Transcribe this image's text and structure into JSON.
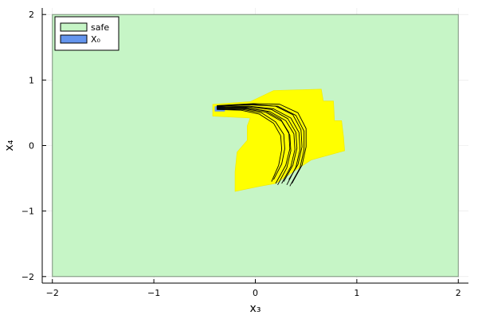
{
  "chart_data": {
    "type": "area",
    "xlabel": "x₃",
    "ylabel": "x₄",
    "xlim": [
      -2.1,
      2.1
    ],
    "ylim": [
      -2.1,
      2.1
    ],
    "xticks": [
      -2,
      -1,
      0,
      1,
      2
    ],
    "yticks": [
      -2,
      -1,
      0,
      1,
      2
    ],
    "xtick_labels": [
      "−2",
      "−1",
      "0",
      "1",
      "2"
    ],
    "ytick_labels": [
      "−2",
      "−1",
      "0",
      "1",
      "2"
    ],
    "grid": true,
    "legend_position": "top-left",
    "legend": [
      {
        "label": "safe",
        "color": "#c6f5c6"
      },
      {
        "label": "X₀",
        "color": "#6495ed"
      }
    ],
    "safe_set": {
      "x": [
        -2,
        2
      ],
      "y": [
        -2,
        2
      ],
      "fill": "#c6f5c6",
      "stroke": "#7a8f7a"
    },
    "initial_set": {
      "x": [
        -0.4,
        -0.3
      ],
      "y": [
        0.52,
        0.6
      ],
      "fill": "#6495ed"
    },
    "reach_set": {
      "fill": "#ffff00",
      "polygon": [
        [
          -0.42,
          0.63
        ],
        [
          -0.05,
          0.67
        ],
        [
          0.18,
          0.84
        ],
        [
          0.65,
          0.86
        ],
        [
          0.67,
          0.68
        ],
        [
          0.77,
          0.68
        ],
        [
          0.78,
          0.38
        ],
        [
          0.85,
          0.38
        ],
        [
          0.87,
          0.12
        ],
        [
          0.88,
          -0.08
        ],
        [
          0.55,
          -0.22
        ],
        [
          0.2,
          -0.58
        ],
        [
          0.05,
          -0.62
        ],
        [
          -0.2,
          -0.7
        ],
        [
          -0.2,
          -0.4
        ],
        [
          -0.18,
          -0.1
        ],
        [
          -0.08,
          0.08
        ],
        [
          -0.08,
          0.3
        ],
        [
          -0.05,
          0.42
        ],
        [
          -0.42,
          0.45
        ]
      ]
    },
    "trajectories": [
      [
        [
          -0.38,
          0.58
        ],
        [
          -0.1,
          0.58
        ],
        [
          0.1,
          0.53
        ],
        [
          0.25,
          0.4
        ],
        [
          0.33,
          0.2
        ],
        [
          0.34,
          -0.05
        ],
        [
          0.3,
          -0.3
        ],
        [
          0.2,
          -0.58
        ]
      ],
      [
        [
          -0.38,
          0.57
        ],
        [
          -0.08,
          0.57
        ],
        [
          0.14,
          0.52
        ],
        [
          0.3,
          0.38
        ],
        [
          0.38,
          0.18
        ],
        [
          0.39,
          -0.06
        ],
        [
          0.35,
          -0.32
        ],
        [
          0.26,
          -0.58
        ]
      ],
      [
        [
          -0.38,
          0.59
        ],
        [
          -0.06,
          0.6
        ],
        [
          0.18,
          0.56
        ],
        [
          0.35,
          0.42
        ],
        [
          0.43,
          0.2
        ],
        [
          0.44,
          -0.06
        ],
        [
          0.4,
          -0.33
        ],
        [
          0.31,
          -0.6
        ]
      ],
      [
        [
          -0.38,
          0.6
        ],
        [
          -0.04,
          0.62
        ],
        [
          0.22,
          0.6
        ],
        [
          0.4,
          0.46
        ],
        [
          0.48,
          0.22
        ],
        [
          0.48,
          -0.06
        ],
        [
          0.44,
          -0.34
        ],
        [
          0.34,
          -0.62
        ]
      ],
      [
        [
          -0.38,
          0.56
        ],
        [
          -0.12,
          0.55
        ],
        [
          0.06,
          0.5
        ],
        [
          0.2,
          0.36
        ],
        [
          0.28,
          0.17
        ],
        [
          0.29,
          -0.05
        ],
        [
          0.26,
          -0.28
        ],
        [
          0.18,
          -0.52
        ]
      ],
      [
        [
          -0.38,
          0.61
        ],
        [
          -0.02,
          0.64
        ],
        [
          0.24,
          0.63
        ],
        [
          0.42,
          0.5
        ],
        [
          0.5,
          0.26
        ],
        [
          0.5,
          -0.02
        ],
        [
          0.46,
          -0.3
        ],
        [
          0.36,
          -0.58
        ]
      ],
      [
        [
          -0.38,
          0.57
        ],
        [
          -0.1,
          0.56
        ],
        [
          0.1,
          0.51
        ],
        [
          0.26,
          0.37
        ],
        [
          0.34,
          0.16
        ],
        [
          0.35,
          -0.08
        ],
        [
          0.31,
          -0.34
        ],
        [
          0.22,
          -0.6
        ]
      ],
      [
        [
          -0.38,
          0.58
        ],
        [
          -0.07,
          0.59
        ],
        [
          0.16,
          0.55
        ],
        [
          0.32,
          0.41
        ],
        [
          0.4,
          0.2
        ],
        [
          0.41,
          -0.04
        ],
        [
          0.37,
          -0.3
        ],
        [
          0.28,
          -0.55
        ]
      ],
      [
        [
          -0.38,
          0.55
        ],
        [
          -0.14,
          0.54
        ],
        [
          0.04,
          0.48
        ],
        [
          0.18,
          0.34
        ],
        [
          0.25,
          0.15
        ],
        [
          0.26,
          -0.06
        ],
        [
          0.23,
          -0.3
        ],
        [
          0.16,
          -0.55
        ]
      ],
      [
        [
          -0.38,
          0.6
        ],
        [
          -0.03,
          0.63
        ],
        [
          0.2,
          0.6
        ],
        [
          0.37,
          0.47
        ],
        [
          0.45,
          0.24
        ],
        [
          0.46,
          -0.02
        ],
        [
          0.42,
          -0.29
        ],
        [
          0.33,
          -0.52
        ]
      ]
    ]
  }
}
